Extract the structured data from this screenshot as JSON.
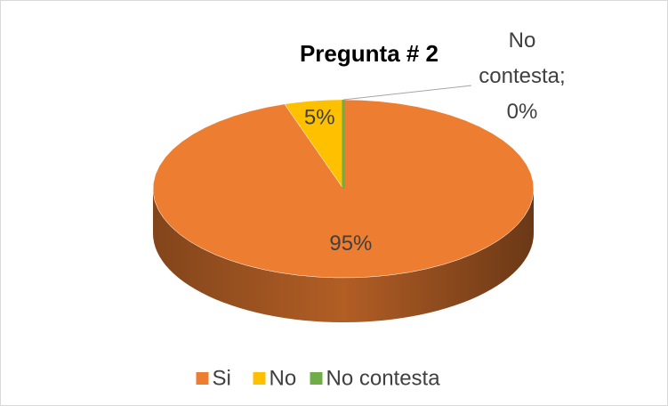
{
  "chart_data": {
    "type": "pie",
    "title": "Pregunta # 2",
    "categories": [
      "Si",
      "No",
      "No contesta"
    ],
    "values": [
      95,
      5,
      0
    ],
    "value_labels": [
      "95%",
      "5%",
      "No contesta; 0%"
    ],
    "colors": [
      "#ED7D31",
      "#FFC000",
      "#70AD47"
    ],
    "legend": "bottom"
  }
}
